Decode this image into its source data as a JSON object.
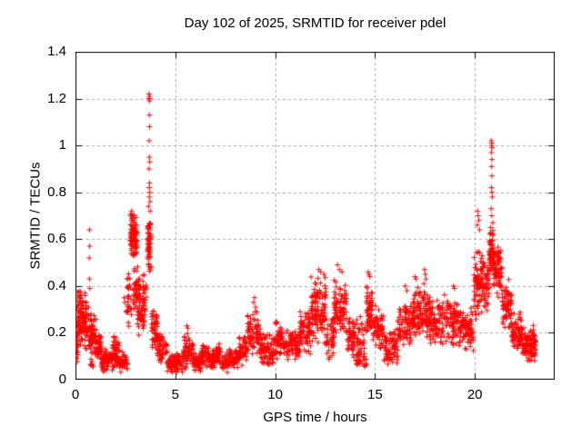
{
  "figure": {
    "background": "#ffffff",
    "axis_color": "#000000",
    "grid_color": "#a8a8a8",
    "marker_color": "#ff0000"
  },
  "chart_data": {
    "type": "scatter",
    "title": "Day 102 of 2025, SRMTID for receiver pdel",
    "xlabel": "GPS time / hours",
    "ylabel": "SRMTID / TECUs",
    "series_name": "SRMTID",
    "xlim": [
      0,
      24
    ],
    "ylim": [
      0,
      1.4
    ],
    "xticks": [
      0,
      5,
      10,
      15,
      20
    ],
    "xtick_labels": [
      "0",
      "5",
      "10",
      "15",
      "20"
    ],
    "yticks": [
      0,
      0.2,
      0.4,
      0.6,
      0.8,
      1,
      1.2,
      1.4
    ],
    "ytick_labels": [
      "0",
      "0.2",
      "0.4",
      "0.6",
      "0.8",
      "1",
      "1.2",
      "1.4"
    ],
    "grid": {
      "visible": true,
      "style": "dashed",
      "color": "#a8a8a8"
    },
    "legend": null,
    "marker": {
      "shape": "plus",
      "color": "#ff0000",
      "size": 7
    },
    "bands": [
      [
        0.0,
        0.15,
        0.04,
        0.3,
        25
      ],
      [
        0.05,
        0.55,
        0.12,
        0.42,
        100
      ],
      [
        0.55,
        0.8,
        0.1,
        0.33,
        40
      ],
      [
        0.75,
        0.9,
        0.03,
        0.1,
        8
      ],
      [
        0.8,
        1.05,
        0.09,
        0.28,
        45
      ],
      [
        1.05,
        1.3,
        0.06,
        0.2,
        40
      ],
      [
        1.3,
        1.85,
        0.03,
        0.14,
        75
      ],
      [
        1.85,
        2.2,
        0.04,
        0.19,
        55
      ],
      [
        2.2,
        2.6,
        0.03,
        0.12,
        45
      ],
      [
        2.55,
        2.8,
        0.22,
        0.48,
        30
      ],
      [
        2.75,
        3.1,
        0.5,
        0.74,
        95
      ],
      [
        2.9,
        3.25,
        0.28,
        0.5,
        45
      ],
      [
        3.1,
        3.5,
        0.18,
        0.38,
        40
      ],
      [
        3.35,
        3.6,
        0.26,
        0.48,
        22
      ],
      [
        3.6,
        3.8,
        0.44,
        0.7,
        60
      ],
      [
        3.8,
        4.1,
        0.12,
        0.32,
        45
      ],
      [
        4.1,
        4.6,
        0.06,
        0.22,
        55
      ],
      [
        4.6,
        5.4,
        0.025,
        0.12,
        95
      ],
      [
        5.4,
        5.9,
        0.04,
        0.2,
        60
      ],
      [
        5.9,
        6.3,
        0.03,
        0.12,
        50
      ],
      [
        6.3,
        6.75,
        0.05,
        0.16,
        55
      ],
      [
        6.75,
        7.05,
        0.04,
        0.13,
        35
      ],
      [
        7.0,
        7.35,
        0.05,
        0.16,
        40
      ],
      [
        7.35,
        7.65,
        0.03,
        0.12,
        35
      ],
      [
        7.65,
        8.15,
        0.04,
        0.14,
        55
      ],
      [
        8.15,
        8.6,
        0.06,
        0.2,
        50
      ],
      [
        8.6,
        9.25,
        0.1,
        0.3,
        75
      ],
      [
        9.25,
        10.0,
        0.05,
        0.21,
        85
      ],
      [
        10.0,
        10.4,
        0.08,
        0.27,
        50
      ],
      [
        10.4,
        11.2,
        0.08,
        0.22,
        90
      ],
      [
        11.2,
        11.8,
        0.1,
        0.31,
        75
      ],
      [
        11.8,
        12.55,
        0.15,
        0.45,
        115
      ],
      [
        12.55,
        12.95,
        0.08,
        0.28,
        45
      ],
      [
        12.95,
        13.6,
        0.17,
        0.44,
        90
      ],
      [
        13.6,
        14.5,
        0.08,
        0.28,
        85
      ],
      [
        14.05,
        14.6,
        0.04,
        0.13,
        30
      ],
      [
        14.55,
        14.9,
        0.18,
        0.44,
        55
      ],
      [
        14.9,
        15.45,
        0.12,
        0.32,
        60
      ],
      [
        15.45,
        16.15,
        0.05,
        0.22,
        75
      ],
      [
        16.15,
        16.9,
        0.14,
        0.34,
        85
      ],
      [
        16.9,
        17.3,
        0.18,
        0.42,
        60
      ],
      [
        17.3,
        17.75,
        0.16,
        0.4,
        60
      ],
      [
        17.75,
        18.45,
        0.14,
        0.34,
        80
      ],
      [
        18.45,
        19.15,
        0.14,
        0.37,
        80
      ],
      [
        19.15,
        19.95,
        0.12,
        0.32,
        90
      ],
      [
        19.95,
        20.45,
        0.25,
        0.58,
        85
      ],
      [
        20.45,
        20.72,
        0.28,
        0.52,
        40
      ],
      [
        20.72,
        20.95,
        0.44,
        0.65,
        70
      ],
      [
        20.95,
        21.35,
        0.34,
        0.6,
        70
      ],
      [
        21.35,
        21.85,
        0.2,
        0.44,
        65
      ],
      [
        21.85,
        22.35,
        0.1,
        0.3,
        70
      ],
      [
        22.35,
        23.05,
        0.07,
        0.24,
        110
      ]
    ],
    "outlier_points": [
      [
        0.7,
        0.64
      ],
      [
        0.71,
        0.57
      ],
      [
        0.69,
        0.52
      ],
      [
        0.7,
        0.43
      ],
      [
        0.72,
        0.39
      ],
      [
        2.44,
        0.35
      ],
      [
        2.47,
        0.33
      ],
      [
        3.68,
        1.22
      ],
      [
        3.71,
        1.21
      ],
      [
        3.69,
        1.2
      ],
      [
        3.72,
        1.2
      ],
      [
        3.7,
        1.19
      ],
      [
        3.7,
        1.13
      ],
      [
        3.71,
        1.08
      ],
      [
        3.69,
        1.02
      ],
      [
        3.7,
        0.95
      ],
      [
        3.72,
        0.93
      ],
      [
        3.68,
        0.9
      ],
      [
        3.71,
        0.84
      ],
      [
        3.69,
        0.82
      ],
      [
        3.72,
        0.8
      ],
      [
        3.7,
        0.78
      ],
      [
        3.73,
        0.76
      ],
      [
        3.66,
        0.74
      ],
      [
        3.74,
        0.72
      ],
      [
        5.58,
        0.23
      ],
      [
        5.63,
        0.22
      ],
      [
        8.92,
        0.33
      ],
      [
        8.97,
        0.35
      ],
      [
        9.02,
        0.31
      ],
      [
        12.18,
        0.47
      ],
      [
        12.28,
        0.46
      ],
      [
        12.45,
        0.45
      ],
      [
        13.12,
        0.49
      ],
      [
        13.22,
        0.47
      ],
      [
        13.35,
        0.46
      ],
      [
        14.66,
        0.46
      ],
      [
        14.7,
        0.45
      ],
      [
        14.74,
        0.44
      ],
      [
        16.52,
        0.4
      ],
      [
        16.6,
        0.38
      ],
      [
        17.0,
        0.44
      ],
      [
        17.06,
        0.43
      ],
      [
        17.48,
        0.47
      ],
      [
        17.52,
        0.45
      ],
      [
        17.55,
        0.43
      ],
      [
        17.45,
        0.41
      ],
      [
        18.93,
        0.4
      ],
      [
        18.98,
        0.39
      ],
      [
        20.14,
        0.72
      ],
      [
        20.17,
        0.7
      ],
      [
        20.2,
        0.68
      ],
      [
        20.12,
        0.66
      ],
      [
        20.24,
        0.64
      ],
      [
        20.82,
        1.02
      ],
      [
        20.85,
        1.01
      ],
      [
        20.84,
        1.0
      ],
      [
        20.86,
        0.99
      ],
      [
        20.83,
        0.97
      ],
      [
        20.86,
        0.94
      ],
      [
        20.84,
        0.91
      ],
      [
        20.85,
        0.87
      ],
      [
        20.83,
        0.82
      ],
      [
        20.86,
        0.8
      ],
      [
        20.88,
        0.78
      ],
      [
        20.82,
        0.73
      ],
      [
        20.85,
        0.7
      ],
      [
        20.9,
        0.67
      ],
      [
        20.8,
        0.65
      ],
      [
        21.38,
        0.35
      ]
    ]
  }
}
